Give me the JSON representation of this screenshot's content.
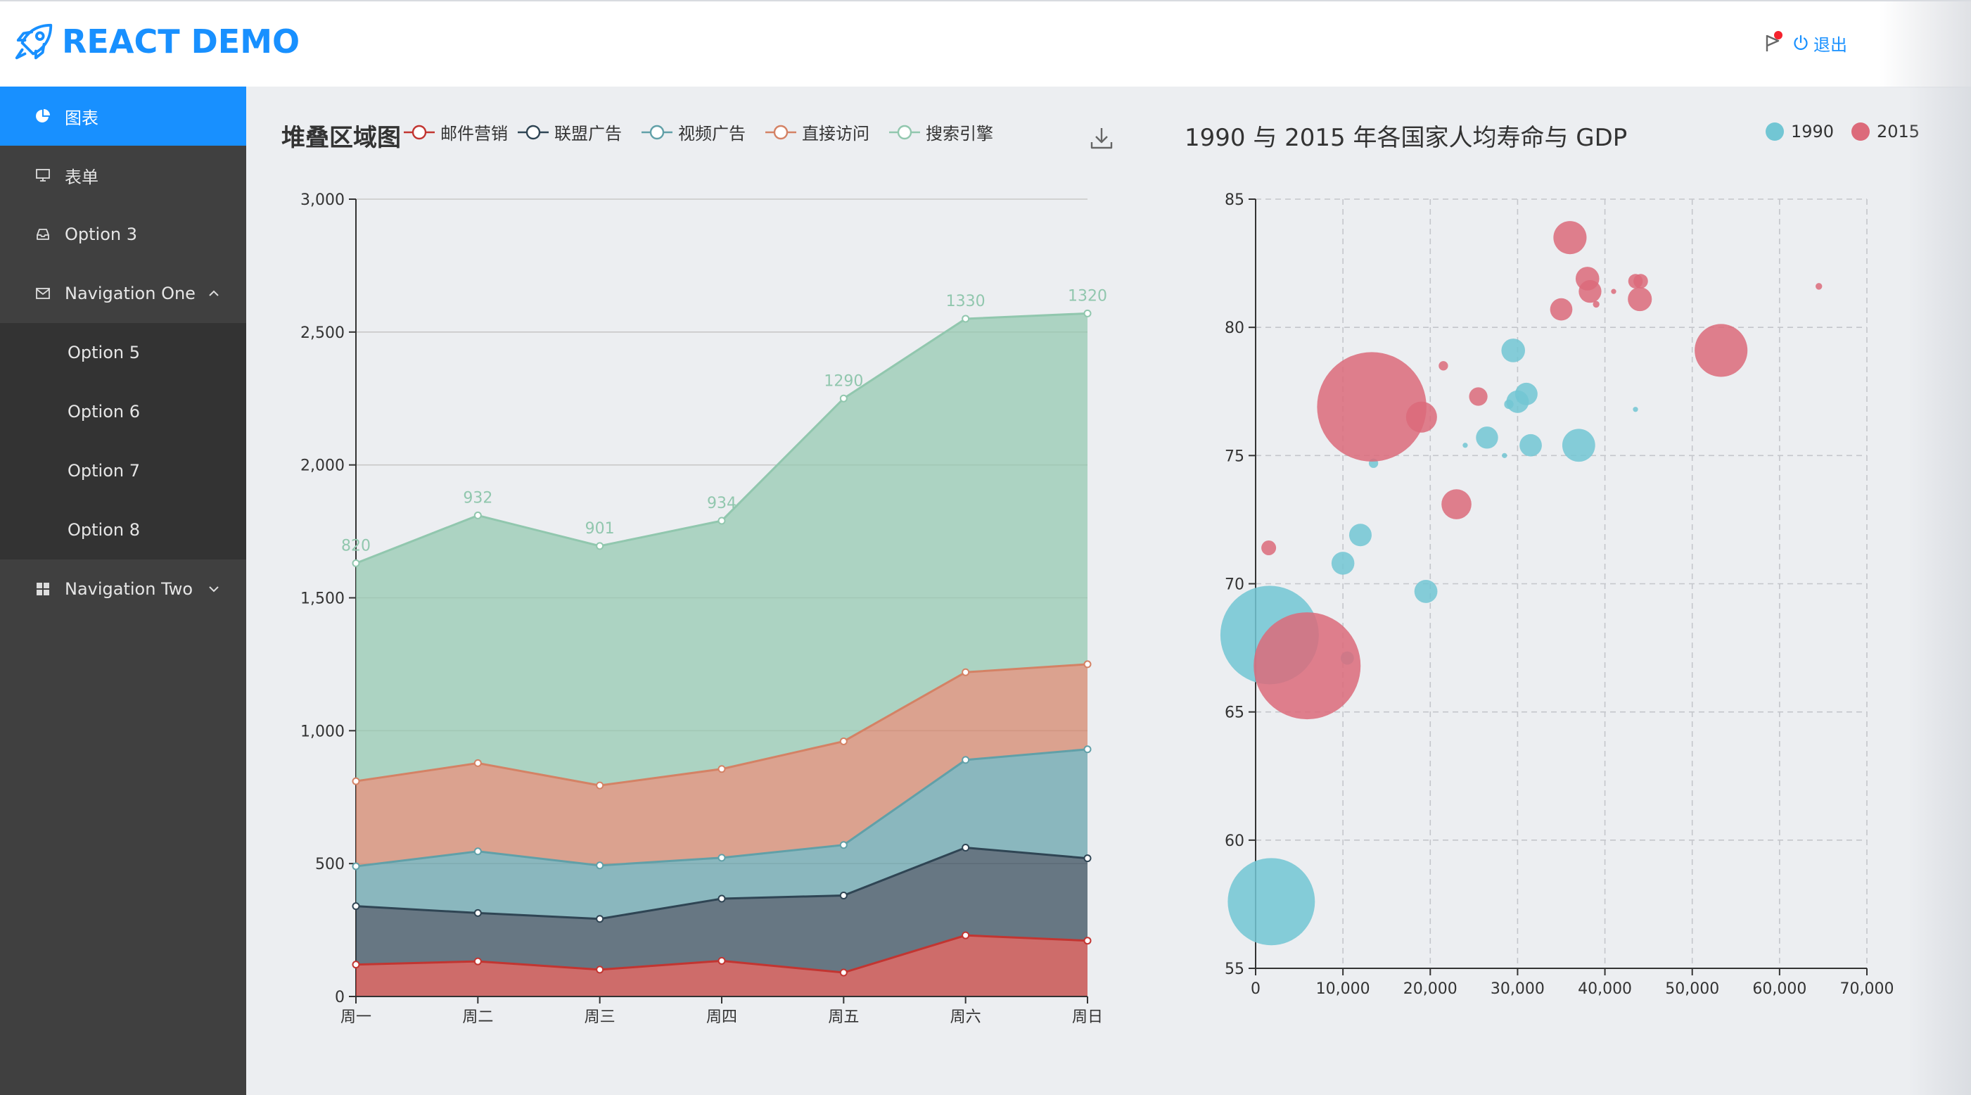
{
  "app": {
    "title": "REACT DEMO",
    "logout_label": "退出",
    "accent_color": "#1890ff"
  },
  "sidebar": {
    "items": [
      {
        "label": "图表",
        "icon": "pie-chart-icon",
        "active": true
      },
      {
        "label": "表单",
        "icon": "desktop-icon"
      },
      {
        "label": "Option 3",
        "icon": "inbox-icon"
      },
      {
        "label": "Navigation One",
        "icon": "mail-icon",
        "expanded": true
      },
      {
        "label": "Navigation Two",
        "icon": "appstore-icon",
        "expanded": false
      }
    ],
    "submenu": [
      {
        "label": "Option 5"
      },
      {
        "label": "Option 6"
      },
      {
        "label": "Option 7"
      },
      {
        "label": "Option 8"
      }
    ]
  },
  "area_chart": {
    "title": "堆叠区域图",
    "legend": [
      {
        "name": "邮件营销",
        "color": "#c23531"
      },
      {
        "name": "联盟广告",
        "color": "#2f4554"
      },
      {
        "name": "视频广告",
        "color": "#61a0a8"
      },
      {
        "name": "直接访问",
        "color": "#d48265"
      },
      {
        "name": "搜索引擎",
        "color": "#91c7ae"
      }
    ],
    "download_icon": "download-icon"
  },
  "bubble_chart": {
    "title": "1990 与 2015 年各国家人均寿命与 GDP",
    "legend": [
      {
        "name": "1990",
        "color": "#72c6d4"
      },
      {
        "name": "2015",
        "color": "#dc6a7a"
      }
    ]
  },
  "chart_data": [
    {
      "type": "area",
      "title": "堆叠区域图",
      "stacked": true,
      "categories": [
        "周一",
        "周二",
        "周三",
        "周四",
        "周五",
        "周六",
        "周日"
      ],
      "ylim": [
        0,
        3000
      ],
      "yticks": [
        0,
        500,
        1000,
        1500,
        2000,
        2500,
        3000
      ],
      "ytick_labels": [
        "0",
        "500",
        "1,000",
        "1,500",
        "2,000",
        "2,500",
        "3,000"
      ],
      "grid": true,
      "legend_position": "top",
      "series": [
        {
          "name": "邮件营销",
          "color": "#c23531",
          "values": [
            120,
            132,
            101,
            134,
            90,
            230,
            210
          ]
        },
        {
          "name": "联盟广告",
          "color": "#2f4554",
          "values": [
            220,
            182,
            191,
            234,
            290,
            330,
            310
          ]
        },
        {
          "name": "视频广告",
          "color": "#61a0a8",
          "values": [
            150,
            232,
            201,
            154,
            190,
            330,
            410
          ]
        },
        {
          "name": "直接访问",
          "color": "#d48265",
          "values": [
            320,
            332,
            301,
            334,
            390,
            330,
            320
          ]
        },
        {
          "name": "搜索引擎",
          "color": "#91c7ae",
          "values": [
            820,
            932,
            901,
            934,
            1290,
            1330,
            1320
          ],
          "show_labels": true
        }
      ]
    },
    {
      "type": "scatter",
      "subtype": "bubble",
      "title": "1990 与 2015 年各国家人均寿命与 GDP",
      "xlim": [
        0,
        70000
      ],
      "xticks": [
        0,
        10000,
        20000,
        30000,
        40000,
        50000,
        60000,
        70000
      ],
      "xtick_labels": [
        "0",
        "10,000",
        "20,000",
        "30,000",
        "40,000",
        "50,000",
        "60,000",
        "70,000"
      ],
      "ylim": [
        55,
        85
      ],
      "yticks": [
        55,
        60,
        65,
        70,
        75,
        80,
        85
      ],
      "grid": true,
      "legend_position": "top-right",
      "series": [
        {
          "name": "1990",
          "color": "#72c6d4",
          "points": [
            {
              "x": 1600,
              "y": 68.0,
              "size": 1110
            },
            {
              "x": 1800,
              "y": 57.6,
              "size": 870
            },
            {
              "x": 37000,
              "y": 75.4,
              "size": 124
            },
            {
              "x": 29500,
              "y": 79.1,
              "size": 64
            },
            {
              "x": 19500,
              "y": 69.7,
              "size": 61
            },
            {
              "x": 31500,
              "y": 75.4,
              "size": 57
            },
            {
              "x": 26500,
              "y": 75.7,
              "size": 56
            },
            {
              "x": 12000,
              "y": 71.9,
              "size": 58
            },
            {
              "x": 10000,
              "y": 70.8,
              "size": 60
            },
            {
              "x": 30000,
              "y": 77.1,
              "size": 58
            },
            {
              "x": 31000,
              "y": 77.4,
              "size": 58
            },
            {
              "x": 29000,
              "y": 77.0,
              "size": 10
            },
            {
              "x": 13500,
              "y": 74.7,
              "size": 10
            },
            {
              "x": 24000,
              "y": 75.4,
              "size": 3
            },
            {
              "x": 28500,
              "y": 75.0,
              "size": 3
            },
            {
              "x": 43500,
              "y": 76.8,
              "size": 3
            },
            {
              "x": 10500,
              "y": 67.1,
              "size": 20
            }
          ]
        },
        {
          "name": "2015",
          "color": "#dc6a7a",
          "points": [
            {
              "x": 13300,
              "y": 76.9,
              "size": 1370
            },
            {
              "x": 5900,
              "y": 66.8,
              "size": 1310
            },
            {
              "x": 53300,
              "y": 79.1,
              "size": 320
            },
            {
              "x": 23000,
              "y": 73.1,
              "size": 103
            },
            {
              "x": 36000,
              "y": 83.5,
              "size": 126
            },
            {
              "x": 19000,
              "y": 76.5,
              "size": 110
            },
            {
              "x": 38000,
              "y": 81.9,
              "size": 64
            },
            {
              "x": 38300,
              "y": 81.4,
              "size": 59
            },
            {
              "x": 44000,
              "y": 81.1,
              "size": 66
            },
            {
              "x": 35000,
              "y": 80.7,
              "size": 57
            },
            {
              "x": 25500,
              "y": 77.3,
              "size": 39
            },
            {
              "x": 43500,
              "y": 81.8,
              "size": 24
            },
            {
              "x": 44100,
              "y": 81.8,
              "size": 24
            },
            {
              "x": 1500,
              "y": 71.4,
              "size": 25
            },
            {
              "x": 21500,
              "y": 78.5,
              "size": 10
            },
            {
              "x": 39000,
              "y": 80.9,
              "size": 5
            },
            {
              "x": 64500,
              "y": 81.6,
              "size": 5
            },
            {
              "x": 41000,
              "y": 81.4,
              "size": 3
            }
          ]
        }
      ]
    }
  ]
}
